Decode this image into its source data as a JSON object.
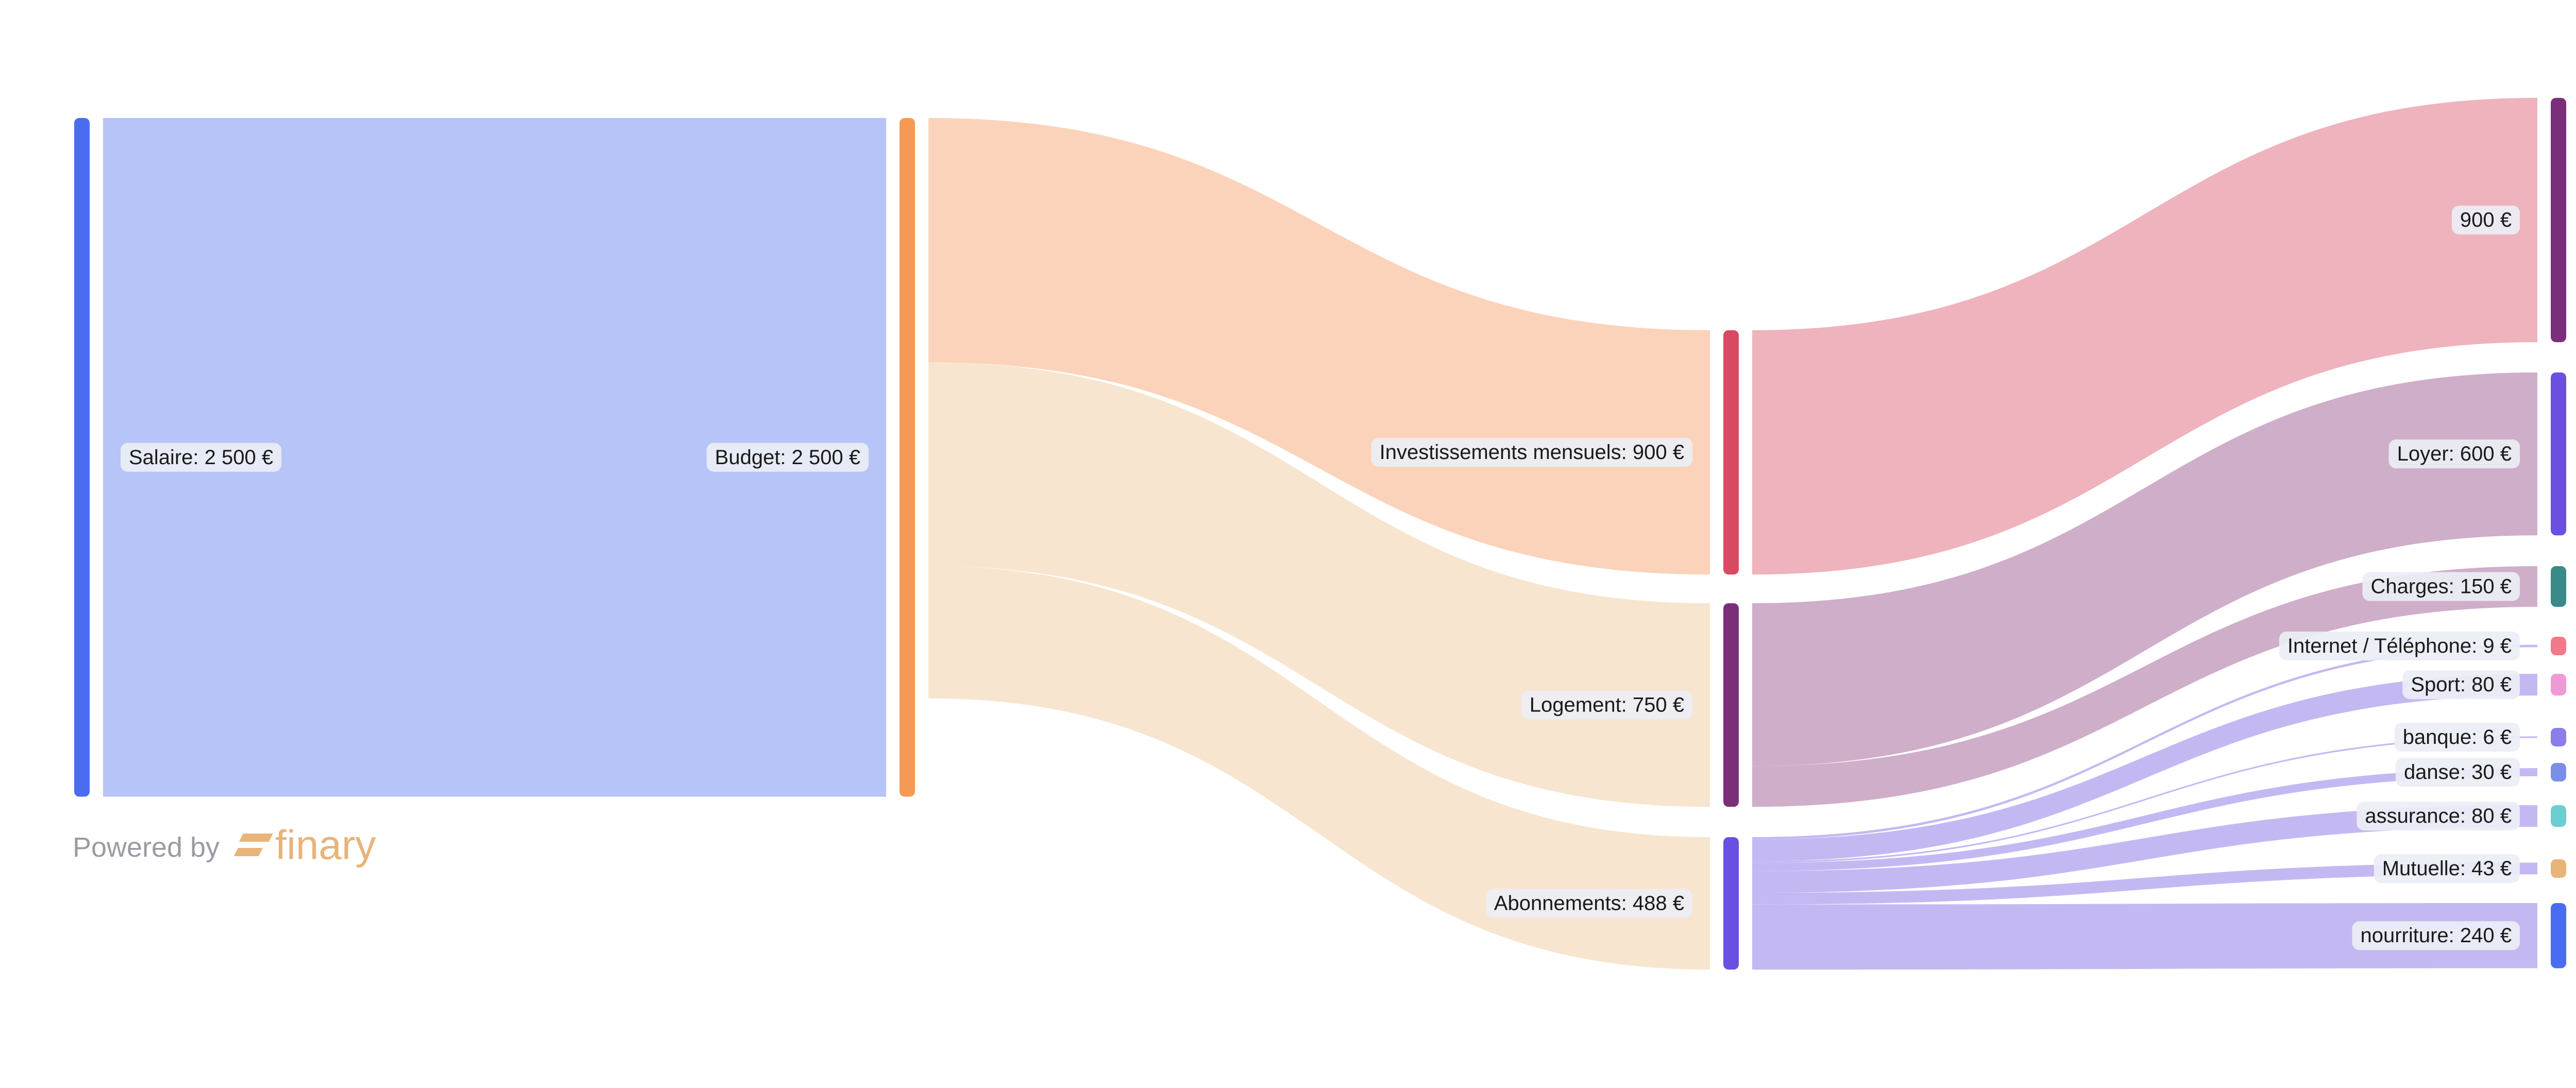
{
  "chart_data": {
    "type": "sankey",
    "nodes": [
      {
        "label": "Salaire: 2 500 €",
        "color": "#4a6cf0"
      },
      {
        "label": "Budget: 2 500 €",
        "color": "#f59a55"
      },
      {
        "label": "Investissements mensuels: 900 €",
        "color": "#d84a62"
      },
      {
        "label": "Logement: 750 €",
        "color": "#7b2f78"
      },
      {
        "label": "Abonnements: 488 €",
        "color": "#6b4fe0"
      },
      {
        "label": "900 €",
        "color": "#7b2f78"
      },
      {
        "label": "Loyer: 600 €",
        "color": "#6b4fe0"
      },
      {
        "label": "Charges: 150 €",
        "color": "#3a8a88"
      },
      {
        "label": "Internet / Téléphone: 9 €",
        "color": "#f07a8a"
      },
      {
        "label": "Sport: 80 €",
        "color": "#ee9ad6"
      },
      {
        "label": "banque: 6 €",
        "color": "#8a7ee8"
      },
      {
        "label": "danse: 30 €",
        "color": "#7c8fe8"
      },
      {
        "label": "assurance: 80 €",
        "color": "#6ecdd0"
      },
      {
        "label": "Mutuelle: 43 €",
        "color": "#e8b47a"
      },
      {
        "label": "nourriture: 240 €",
        "color": "#4a6cf0"
      }
    ],
    "links": [
      {
        "source": 0,
        "target": 1,
        "value": 2500,
        "color": "#b6c4f7"
      },
      {
        "source": 1,
        "target": 2,
        "value": 900,
        "color": "#fbd3ba"
      },
      {
        "source": 1,
        "target": 3,
        "value": 750,
        "color": "#f7e5cf"
      },
      {
        "source": 1,
        "target": 4,
        "value": 488,
        "color": "#f7e5cf"
      },
      {
        "source": 2,
        "target": 5,
        "value": 900,
        "color": "#eeb3bd"
      },
      {
        "source": 3,
        "target": 6,
        "value": 600,
        "color": "#cfaec9"
      },
      {
        "source": 3,
        "target": 7,
        "value": 150,
        "color": "#cfaec9"
      },
      {
        "source": 4,
        "target": 8,
        "value": 9,
        "color": "#c4b8f3"
      },
      {
        "source": 4,
        "target": 9,
        "value": 80,
        "color": "#c4b8f3"
      },
      {
        "source": 4,
        "target": 10,
        "value": 6,
        "color": "#c4b8f3"
      },
      {
        "source": 4,
        "target": 11,
        "value": 30,
        "color": "#c4b8f3"
      },
      {
        "source": 4,
        "target": 12,
        "value": 80,
        "color": "#c4b8f3"
      },
      {
        "source": 4,
        "target": 13,
        "value": 43,
        "color": "#c4b8f3"
      },
      {
        "source": 4,
        "target": 14,
        "value": 240,
        "color": "#c4b8f3"
      }
    ]
  },
  "footer": {
    "powered_by": "Powered by",
    "brand": "finary"
  }
}
